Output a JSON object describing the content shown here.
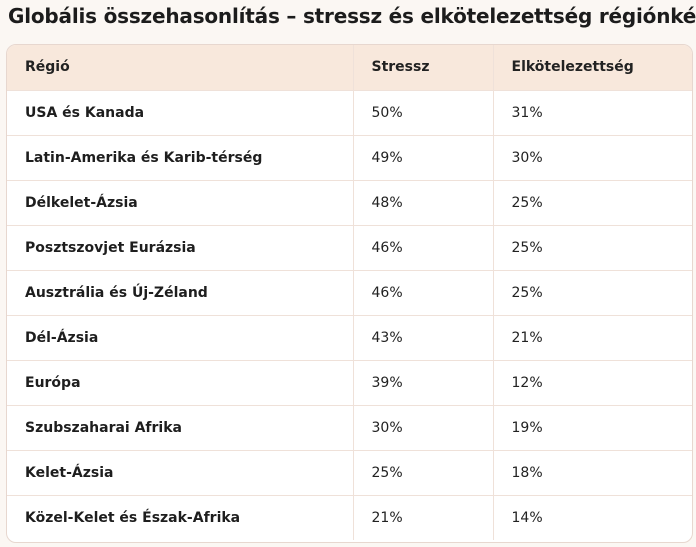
{
  "title": "Globális összehasonlítás – stressz és elkötelezettség régiónként",
  "table": {
    "headers": [
      "Régió",
      "Stressz",
      "Elkötelezettség"
    ],
    "rows": [
      [
        "USA és Kanada",
        "50%",
        "31%"
      ],
      [
        "Latin-Amerika és Karib-térség",
        "49%",
        "30%"
      ],
      [
        "Délkelet-Ázsia",
        "48%",
        "25%"
      ],
      [
        "Posztszovjet Eurázsia",
        "46%",
        "25%"
      ],
      [
        "Ausztrália és Új-Zéland",
        "46%",
        "25%"
      ],
      [
        "Dél-Ázsia",
        "43%",
        "21%"
      ],
      [
        "Európa",
        "39%",
        "12%"
      ],
      [
        "Szubszaharai Afrika",
        "30%",
        "19%"
      ],
      [
        "Kelet-Ázsia",
        "25%",
        "18%"
      ],
      [
        "Közel-Kelet és Észak-Afrika",
        "21%",
        "14%"
      ]
    ]
  },
  "colors": {
    "header_bg": "#f8e8dc",
    "border": "#efe1d9",
    "page_bg": "#fbf7f3"
  }
}
